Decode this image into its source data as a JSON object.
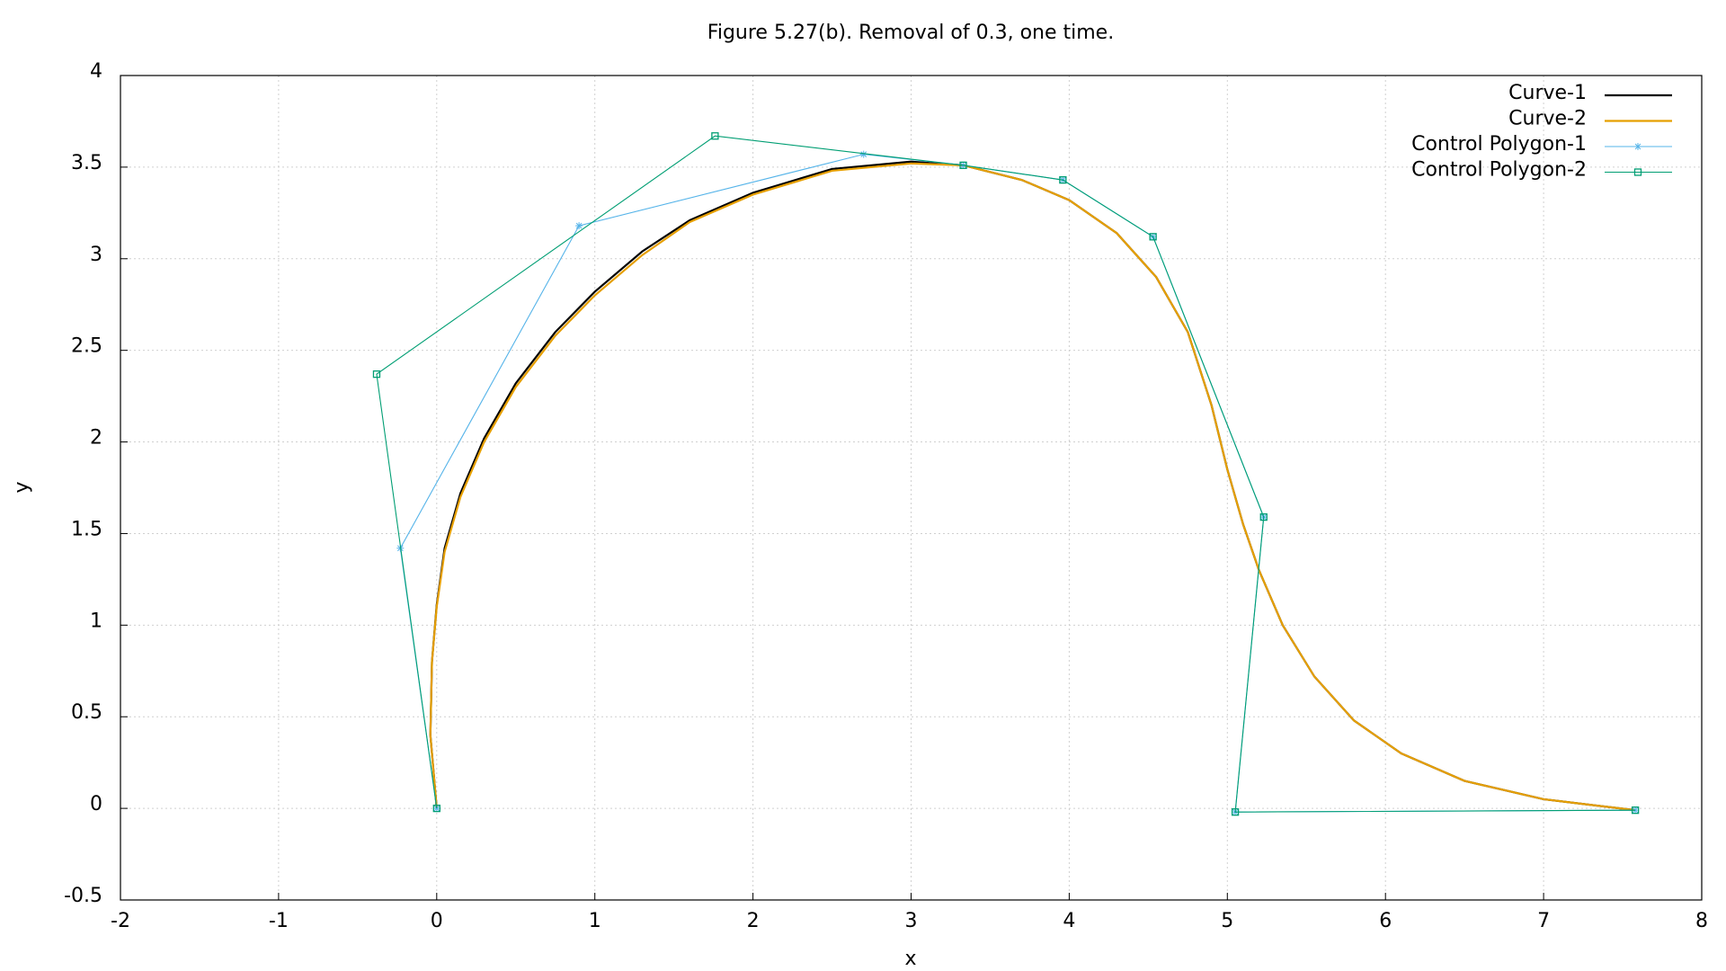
{
  "chart_data": {
    "type": "line",
    "title": "Figure 5.27(b). Removal of 0.3, one time.",
    "x_label": "x",
    "y_label": "y",
    "xlim": [
      -2,
      8
    ],
    "ylim": [
      -0.5,
      4
    ],
    "xticks": [
      -2,
      -1,
      0,
      1,
      2,
      3,
      4,
      5,
      6,
      7,
      8
    ],
    "yticks": [
      -0.5,
      0,
      0.5,
      1,
      1.5,
      2,
      2.5,
      3,
      3.5,
      4
    ],
    "grid": true,
    "legend": "top-right",
    "series": [
      {
        "name": "Curve-1",
        "color": "#000000",
        "marker": "none",
        "x": [
          0,
          -0.04,
          -0.03,
          0.0,
          0.05,
          0.15,
          0.3,
          0.5,
          0.75,
          1.0,
          1.3,
          1.6,
          2.0,
          2.5,
          3.0,
          3.33,
          3.7,
          4.0,
          4.3,
          4.55,
          4.75,
          4.9,
          5.0,
          5.1,
          5.2,
          5.35,
          5.55,
          5.8,
          6.1,
          6.5,
          7.0,
          7.58
        ],
        "values": [
          0,
          0.4,
          0.8,
          1.11,
          1.42,
          1.72,
          2.02,
          2.32,
          2.6,
          2.82,
          3.04,
          3.21,
          3.36,
          3.49,
          3.53,
          3.51,
          3.43,
          3.32,
          3.14,
          2.9,
          2.6,
          2.2,
          1.85,
          1.55,
          1.3,
          1.0,
          0.72,
          0.48,
          0.3,
          0.15,
          0.05,
          -0.01
        ]
      },
      {
        "name": "Curve-2",
        "color": "#e69f00",
        "marker": "none",
        "x": [
          0,
          -0.04,
          -0.03,
          0.0,
          0.05,
          0.15,
          0.3,
          0.5,
          0.75,
          1.0,
          1.3,
          1.6,
          2.0,
          2.5,
          3.0,
          3.33,
          3.7,
          4.0,
          4.3,
          4.55,
          4.75,
          4.9,
          5.0,
          5.1,
          5.2,
          5.35,
          5.55,
          5.8,
          6.1,
          6.5,
          7.0,
          7.58
        ],
        "values": [
          0,
          0.4,
          0.8,
          1.1,
          1.4,
          1.7,
          2.0,
          2.3,
          2.58,
          2.8,
          3.02,
          3.2,
          3.35,
          3.48,
          3.52,
          3.51,
          3.43,
          3.32,
          3.14,
          2.9,
          2.6,
          2.2,
          1.85,
          1.55,
          1.3,
          1.0,
          0.72,
          0.48,
          0.3,
          0.15,
          0.05,
          -0.01
        ]
      },
      {
        "name": "Control Polygon-1",
        "color": "#56b4e9",
        "marker": "star",
        "x": [
          0,
          -0.23,
          0.9,
          2.7,
          3.33,
          3.96,
          4.53,
          5.23,
          5.05,
          7.58
        ],
        "values": [
          0,
          1.42,
          3.18,
          3.57,
          3.51,
          3.43,
          3.12,
          1.59,
          -0.02,
          -0.01
        ]
      },
      {
        "name": "Control Polygon-2",
        "color": "#009e73",
        "marker": "square",
        "x": [
          0,
          -0.38,
          1.76,
          3.33,
          3.96,
          4.53,
          5.23,
          5.05,
          7.58
        ],
        "values": [
          0,
          2.37,
          3.67,
          3.51,
          3.43,
          3.12,
          1.59,
          -0.02,
          -0.01
        ]
      }
    ]
  }
}
